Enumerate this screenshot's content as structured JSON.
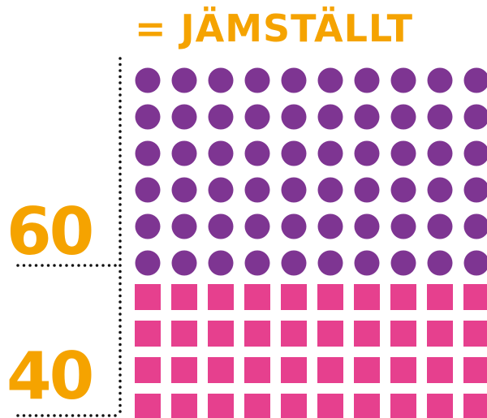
{
  "title": "= JÄMSTÄLLT",
  "colors": {
    "accent": "#F5A300",
    "top_series": "#7E3592",
    "bottom_series": "#E6408E",
    "divider": "#111111"
  },
  "chart_data": {
    "type": "waffle",
    "columns": 10,
    "series": [
      {
        "label": "60",
        "value": 60,
        "shape": "circle",
        "color": "#7E3592"
      },
      {
        "label": "40",
        "value": 40,
        "shape": "square",
        "color": "#E6408E"
      }
    ]
  }
}
